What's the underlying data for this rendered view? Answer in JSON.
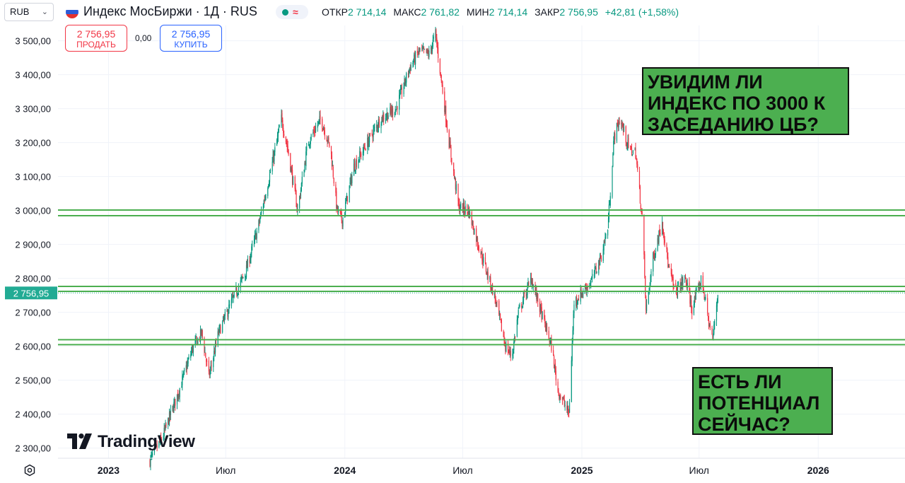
{
  "header": {
    "currency": "RUB",
    "symbol_title": "Индекс МосБиржи · 1Д · RUS",
    "flag_colors": [
      "#ffffff",
      "#2d5bd6",
      "#e5312d"
    ],
    "ohlc": {
      "open_label": "ОТКР",
      "open": "2 714,14",
      "high_label": "МАКС",
      "high": "2 761,82",
      "low_label": "МИН",
      "low": "2 714,14",
      "close_label": "ЗАКР",
      "close": "2 756,95",
      "change": "+42,81 (+1,58%)"
    }
  },
  "trade": {
    "sell_price": "2 756,95",
    "sell_label": "ПРОДАТЬ",
    "spread": "0,00",
    "buy_price": "2 756,95",
    "buy_label": "КУПИТЬ"
  },
  "notes": {
    "top": "УВИДИМ ЛИ\nИНДЕКС ПО 3000 К\nЗАСЕДАНИЮ ЦБ?",
    "bottom": "ЕСТЬ ЛИ\nПОТЕНЦИАЛ\nСЕЙЧАС?"
  },
  "branding": {
    "logo_text": "TradingView"
  },
  "colors": {
    "up": "#089981",
    "down": "#f23645",
    "level": "#4caf50",
    "last_price_bg": "#22ab94"
  },
  "chart_data": {
    "type": "candlestick",
    "title": "",
    "ylim": [
      2270,
      3545
    ],
    "y_ticks": [
      {
        "v": 2300,
        "label": "2 300,00"
      },
      {
        "v": 2400,
        "label": "2 400,00"
      },
      {
        "v": 2500,
        "label": "2 500,00"
      },
      {
        "v": 2600,
        "label": "2 600,00"
      },
      {
        "v": 2700,
        "label": "2 700,00"
      },
      {
        "v": 2800,
        "label": "2 800,00"
      },
      {
        "v": 2900,
        "label": "2 900,00"
      },
      {
        "v": 3000,
        "label": "3 000,00"
      },
      {
        "v": 3100,
        "label": "3 100,00"
      },
      {
        "v": 3200,
        "label": "3 200,00"
      },
      {
        "v": 3300,
        "label": "3 300,00"
      },
      {
        "v": 3400,
        "label": "3 400,00"
      },
      {
        "v": 3500,
        "label": "3 500,00"
      }
    ],
    "x_range": [
      "2022-10-15",
      "2026-05-15"
    ],
    "x_ticks": [
      {
        "date": "2023-01-01",
        "label": "2023",
        "bold": true
      },
      {
        "date": "2023-07-01",
        "label": "Июл",
        "bold": false
      },
      {
        "date": "2024-01-01",
        "label": "2024",
        "bold": true
      },
      {
        "date": "2024-07-01",
        "label": "Июл",
        "bold": false
      },
      {
        "date": "2025-01-01",
        "label": "2025",
        "bold": true
      },
      {
        "date": "2025-07-01",
        "label": "Июл",
        "bold": false
      },
      {
        "date": "2026-01-01",
        "label": "2026",
        "bold": true
      }
    ],
    "price_path": [
      [
        "2023-03-05",
        2260
      ],
      [
        "2023-03-25",
        2330
      ],
      [
        "2023-04-20",
        2470
      ],
      [
        "2023-05-10",
        2590
      ],
      [
        "2023-05-25",
        2640
      ],
      [
        "2023-06-05",
        2510
      ],
      [
        "2023-06-20",
        2640
      ],
      [
        "2023-07-10",
        2730
      ],
      [
        "2023-08-01",
        2820
      ],
      [
        "2023-08-20",
        2950
      ],
      [
        "2023-09-10",
        3130
      ],
      [
        "2023-09-25",
        3270
      ],
      [
        "2023-10-05",
        3180
      ],
      [
        "2023-10-20",
        3000
      ],
      [
        "2023-11-05",
        3200
      ],
      [
        "2023-11-25",
        3270
      ],
      [
        "2023-12-10",
        3180
      ],
      [
        "2023-12-20",
        3000
      ],
      [
        "2023-12-28",
        2970
      ],
      [
        "2024-01-15",
        3130
      ],
      [
        "2024-02-05",
        3200
      ],
      [
        "2024-02-25",
        3270
      ],
      [
        "2024-03-20",
        3300
      ],
      [
        "2024-04-10",
        3420
      ],
      [
        "2024-04-25",
        3470
      ],
      [
        "2024-05-10",
        3460
      ],
      [
        "2024-05-20",
        3520
      ],
      [
        "2024-06-10",
        3200
      ],
      [
        "2024-06-25",
        3010
      ],
      [
        "2024-07-10",
        3000
      ],
      [
        "2024-07-25",
        2900
      ],
      [
        "2024-08-20",
        2740
      ],
      [
        "2024-09-05",
        2600
      ],
      [
        "2024-09-15",
        2570
      ],
      [
        "2024-09-25",
        2700
      ],
      [
        "2024-10-15",
        2800
      ],
      [
        "2024-10-30",
        2700
      ],
      [
        "2024-11-15",
        2600
      ],
      [
        "2024-11-25",
        2470
      ],
      [
        "2024-12-05",
        2430
      ],
      [
        "2024-12-12",
        2400
      ],
      [
        "2024-12-20",
        2730
      ],
      [
        "2025-01-15",
        2790
      ],
      [
        "2025-01-30",
        2860
      ],
      [
        "2025-02-10",
        2950
      ],
      [
        "2025-02-20",
        3220
      ],
      [
        "2025-03-01",
        3270
      ],
      [
        "2025-03-15",
        3180
      ],
      [
        "2025-03-25",
        3170
      ],
      [
        "2025-04-05",
        2960
      ],
      [
        "2025-04-10",
        2700
      ],
      [
        "2025-04-20",
        2850
      ],
      [
        "2025-05-05",
        2970
      ],
      [
        "2025-05-15",
        2830
      ],
      [
        "2025-05-25",
        2760
      ],
      [
        "2025-06-10",
        2800
      ],
      [
        "2025-06-20",
        2710
      ],
      [
        "2025-07-05",
        2800
      ],
      [
        "2025-07-15",
        2680
      ],
      [
        "2025-07-22",
        2620
      ],
      [
        "2025-07-30",
        2757
      ]
    ],
    "levels": [
      {
        "value": 2993,
        "gap": 8
      },
      {
        "value": 2769,
        "gap": 7
      },
      {
        "value": 2612,
        "gap": 7
      }
    ],
    "last_price": {
      "value": 2756.95,
      "label": "2 756,95"
    }
  }
}
